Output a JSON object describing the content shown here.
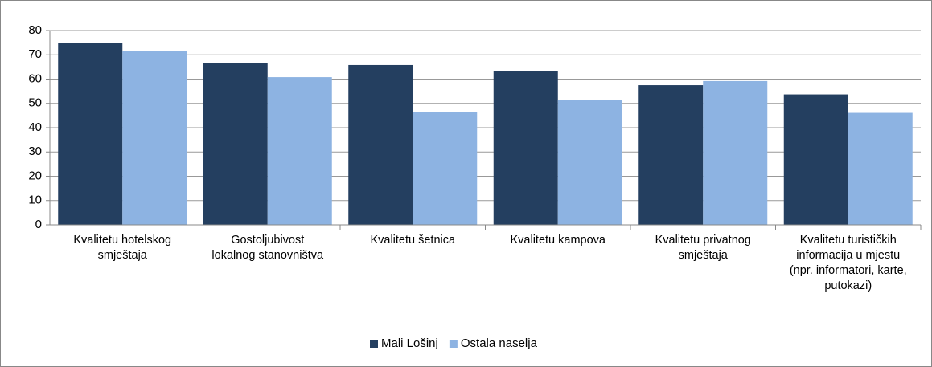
{
  "chart_data": {
    "type": "bar",
    "categories": [
      "Kvalitetu hotelskog\nsmještaja",
      "Gostoljubivost\nlokalnog stanovništva",
      "Kvalitetu šetnica",
      "Kvalitetu kampova",
      "Kvalitetu privatnog\nsmještaja",
      "Kvalitetu turističkih\ninformacija u mjestu\n(npr. informatori, karte,\nputokazi)"
    ],
    "series": [
      {
        "name": "Mali Lošinj",
        "color": "#243f60",
        "values": [
          75,
          66.5,
          65.8,
          63.2,
          57.5,
          53.7
        ]
      },
      {
        "name": "Ostala naselja",
        "color": "#8db3e2",
        "values": [
          71.7,
          60.8,
          46.3,
          51.5,
          59.2,
          46.1
        ]
      }
    ],
    "ylim": [
      0,
      80
    ],
    "yticks": [
      0,
      10,
      20,
      30,
      40,
      50,
      60,
      70,
      80
    ],
    "grid": true,
    "legend": "bottom"
  }
}
